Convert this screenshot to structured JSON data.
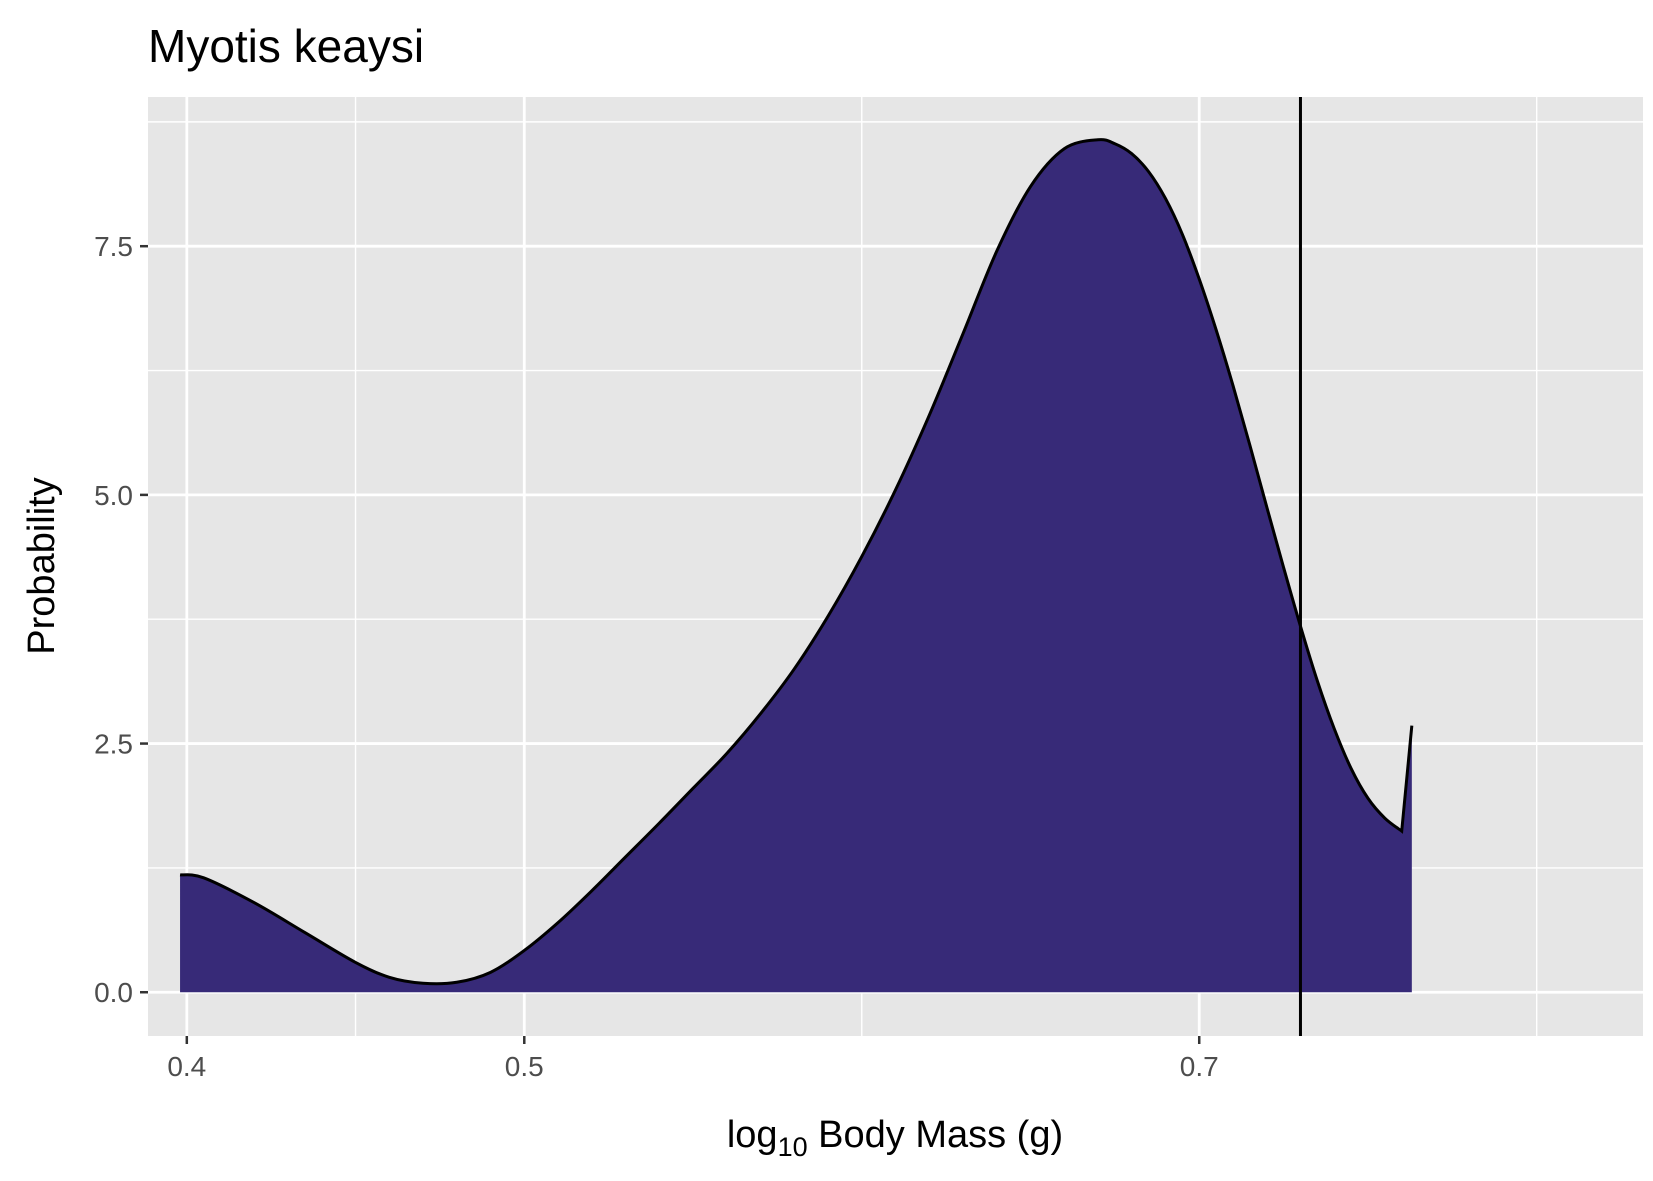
{
  "chart_data": {
    "type": "area",
    "title": "Myotis keaysi",
    "xlabel": {
      "prefix": "log",
      "subscript": "10",
      "suffix": " Body Mass (g)"
    },
    "ylabel": "Probability",
    "xlim": [
      0.3885,
      0.8315
    ],
    "ylim": [
      -0.44,
      9.0
    ],
    "x_ticks": [
      0.4,
      0.5,
      0.7
    ],
    "x_tick_labels": [
      "0.4",
      "0.5",
      "0.7"
    ],
    "x_minor_grid": [
      0.45,
      0.6,
      0.8
    ],
    "y_ticks": [
      0.0,
      2.5,
      5.0,
      7.5
    ],
    "y_tick_labels": [
      "0.0",
      "2.5",
      "5.0",
      "7.5"
    ],
    "y_minor_grid": [
      1.25,
      3.75,
      6.25,
      8.75
    ],
    "reference_line_x": 0.73,
    "series": [
      {
        "fill": "#372a78",
        "stroke": "#000000",
        "x": [
          0.398,
          0.405,
          0.42,
          0.435,
          0.45,
          0.46,
          0.47,
          0.48,
          0.49,
          0.5,
          0.51,
          0.52,
          0.53,
          0.54,
          0.55,
          0.56,
          0.57,
          0.58,
          0.59,
          0.6,
          0.61,
          0.62,
          0.63,
          0.64,
          0.65,
          0.66,
          0.67,
          0.675,
          0.68,
          0.685,
          0.69,
          0.695,
          0.7,
          0.705,
          0.71,
          0.715,
          0.72,
          0.725,
          0.73,
          0.735,
          0.74,
          0.745,
          0.75,
          0.755,
          0.76,
          0.763
        ],
        "y": [
          1.18,
          1.15,
          0.9,
          0.6,
          0.3,
          0.15,
          0.09,
          0.1,
          0.2,
          0.42,
          0.7,
          1.02,
          1.36,
          1.7,
          2.05,
          2.4,
          2.8,
          3.25,
          3.78,
          4.38,
          5.05,
          5.8,
          6.62,
          7.45,
          8.1,
          8.48,
          8.57,
          8.53,
          8.43,
          8.25,
          7.98,
          7.62,
          7.17,
          6.66,
          6.1,
          5.5,
          4.88,
          4.27,
          3.68,
          3.13,
          2.65,
          2.25,
          1.95,
          1.75,
          1.62,
          2.68
        ]
      }
    ]
  }
}
